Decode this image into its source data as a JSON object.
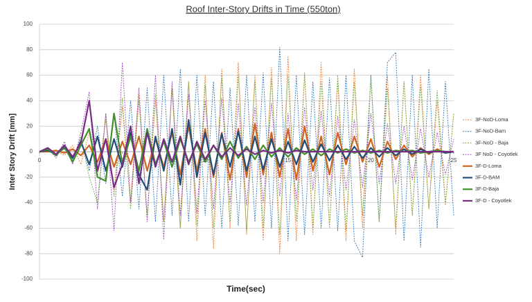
{
  "chart_data": {
    "type": "line",
    "title": "Roof Inter-Story Drifts in Time (550ton)",
    "x_label": "Time(sec)",
    "y_label": "Inter Story Drift [mm]",
    "xlim": [
      0,
      25
    ],
    "xticks": [
      0,
      5,
      10,
      15,
      20,
      25
    ],
    "ylim": [
      -100,
      100
    ],
    "yticks": [
      -100,
      -80,
      -60,
      -40,
      -20,
      0,
      20,
      40,
      60,
      80,
      100
    ],
    "grid": true,
    "legend": "right",
    "x": [
      0,
      0.5,
      1,
      1.5,
      2,
      2.5,
      3,
      3.5,
      4,
      4.5,
      5,
      5.5,
      6,
      6.5,
      7,
      7.5,
      8,
      8.5,
      9,
      9.5,
      10,
      10.5,
      11,
      11.5,
      12,
      12.5,
      13,
      13.5,
      14,
      14.5,
      15,
      15.5,
      16,
      16.5,
      17,
      17.5,
      18,
      18.5,
      19,
      19.5,
      20,
      20.5,
      21,
      21.5,
      22,
      22.5,
      23,
      23.5,
      24,
      24.5,
      25
    ],
    "series": [
      {
        "name": "3F-NoD-Loma",
        "color": "#ed7d31",
        "style": "dashed",
        "values": [
          0,
          0,
          1,
          -3,
          5,
          -10,
          15,
          -20,
          25,
          -30,
          35,
          -40,
          45,
          -50,
          40,
          -55,
          50,
          -60,
          55,
          -70,
          60,
          -76,
          65,
          -60,
          70,
          -65,
          60,
          -70,
          66,
          -80,
          75,
          -70,
          60,
          -65,
          70,
          -60,
          55,
          -70,
          65,
          -60,
          58,
          -55,
          60,
          -65,
          55,
          -50,
          60,
          -45,
          40,
          -42,
          30
        ]
      },
      {
        "name": "3F-NoD-Bam",
        "color": "#2e75b6",
        "style": "dashed",
        "values": [
          0,
          1,
          -2,
          4,
          -6,
          10,
          -15,
          20,
          -25,
          30,
          -35,
          40,
          -45,
          50,
          -55,
          60,
          -50,
          65,
          -55,
          60,
          -50,
          55,
          -60,
          50,
          -58,
          60,
          -55,
          62,
          -60,
          82,
          -70,
          60,
          -65,
          55,
          -60,
          58,
          -62,
          60,
          -70,
          -83,
          60,
          -55,
          70,
          78,
          -70,
          60,
          -75,
          65,
          -60,
          55,
          -50
        ]
      },
      {
        "name": "3F-NoD - Baja",
        "color": "#70ad47",
        "style": "dashed",
        "values": [
          0,
          2,
          -3,
          6,
          -8,
          12,
          -20,
          -40,
          30,
          -35,
          42,
          -45,
          40,
          -50,
          45,
          -55,
          50,
          -60,
          55,
          -58,
          52,
          -60,
          58,
          -55,
          60,
          -62,
          55,
          -60,
          58,
          -65,
          60,
          -55,
          62,
          -60,
          55,
          -58,
          60,
          -62,
          55,
          -50,
          58,
          -55,
          50,
          -60,
          55,
          -50,
          52,
          -45,
          48,
          -40,
          30
        ]
      },
      {
        "name": "3F NoD - Coyotlek",
        "color": "#9e48b8",
        "style": "dashed",
        "values": [
          0,
          3,
          -5,
          8,
          -10,
          15,
          47,
          -45,
          30,
          -62,
          70,
          -40,
          50,
          -55,
          60,
          -69,
          55,
          -50,
          45,
          -48,
          40,
          -45,
          42,
          -40,
          38,
          -42,
          35,
          -40,
          38,
          -35,
          30,
          -38,
          35,
          -30,
          32,
          -35,
          28,
          -30,
          25,
          -28,
          30,
          -25,
          22,
          -25,
          20,
          -22,
          18,
          -20,
          15,
          -18,
          10
        ]
      },
      {
        "name": "3F-D-Loma",
        "color": "#d0651f",
        "style": "solid",
        "values": [
          0,
          0,
          1,
          -1,
          2,
          -3,
          5,
          -8,
          10,
          -12,
          8,
          -10,
          12,
          -15,
          10,
          -12,
          15,
          -18,
          20,
          -15,
          18,
          -20,
          15,
          -22,
          18,
          -20,
          22,
          -18,
          15,
          -20,
          18,
          -22,
          20,
          -15,
          12,
          -18,
          15,
          -10,
          12,
          -8,
          10,
          -12,
          8,
          -6,
          5,
          -4,
          3,
          -2,
          2,
          -1,
          0
        ]
      },
      {
        "name": "3F-D-BAM",
        "color": "#1f4e79",
        "style": "solid",
        "values": [
          0,
          1,
          -2,
          3,
          -5,
          8,
          -10,
          12,
          -15,
          10,
          -12,
          15,
          -18,
          -30,
          12,
          -15,
          18,
          -26,
          25,
          -20,
          15,
          -18,
          14,
          -12,
          16,
          -15,
          12,
          -14,
          10,
          -12,
          8,
          -10,
          9,
          -8,
          6,
          -7,
          5,
          -6,
          4,
          -5,
          3,
          -4,
          3,
          -3,
          2,
          -2,
          2,
          -1,
          1,
          -1,
          0
        ]
      },
      {
        "name": "3F-D-Baja",
        "color": "#3f8f2a",
        "style": "solid",
        "values": [
          0,
          2,
          -3,
          4,
          -8,
          5,
          18,
          -20,
          -23,
          30,
          -10,
          12,
          -15,
          18,
          -10,
          8,
          -12,
          10,
          -8,
          6,
          -8,
          5,
          -6,
          8,
          -5,
          4,
          -6,
          5,
          -4,
          3,
          -4,
          3,
          -2,
          2,
          -3,
          2,
          -1,
          2,
          -1,
          1,
          -1,
          1,
          -1,
          1,
          0,
          1,
          -1,
          0,
          1,
          0,
          0
        ]
      },
      {
        "name": "3F-D - Coyotlek",
        "color": "#7b2a84",
        "style": "solid",
        "values": [
          0,
          3,
          -2,
          5,
          -4,
          7,
          40,
          -15,
          10,
          -28,
          -10,
          20,
          -25,
          15,
          -12,
          10,
          -8,
          12,
          -10,
          8,
          -6,
          5,
          -4,
          3,
          -3,
          2,
          -2,
          1,
          -1,
          1,
          -1,
          1,
          0,
          0,
          0,
          0,
          0,
          0,
          0,
          0,
          0,
          0,
          0,
          0,
          0,
          0,
          0,
          0,
          0,
          0,
          0
        ]
      }
    ]
  }
}
